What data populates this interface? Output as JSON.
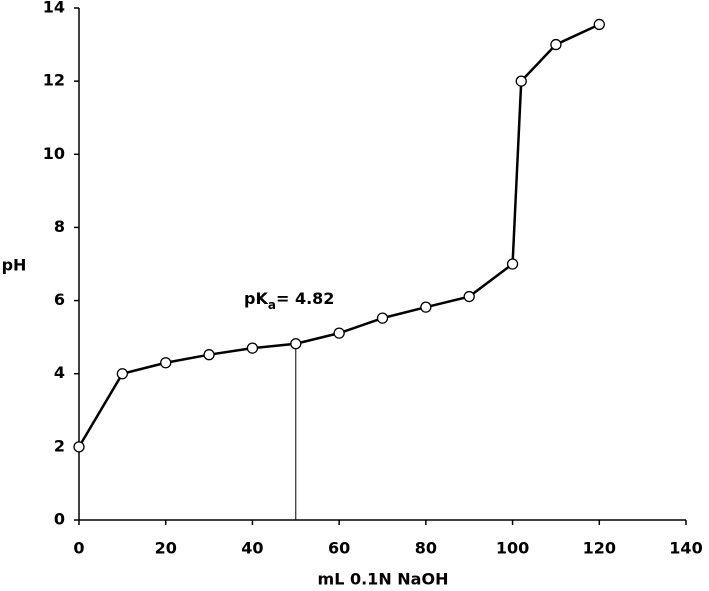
{
  "chart_data": {
    "type": "line",
    "x_label": "mL 0.1N NaOH",
    "y_label": "pH",
    "x": [
      0,
      10,
      20,
      30,
      40,
      50,
      60,
      70,
      80,
      90,
      100,
      102,
      110,
      120
    ],
    "series": [
      {
        "name": "pH",
        "color": "#000000",
        "values": [
          2,
          4,
          4.3,
          4.52,
          4.7,
          4.82,
          5.11,
          5.52,
          5.82,
          6.11,
          7,
          12,
          13,
          13.55
        ]
      }
    ],
    "xlim": [
      0,
      140
    ],
    "xticks": [
      0,
      20,
      40,
      60,
      80,
      100,
      120,
      140
    ],
    "ylim": [
      0,
      14
    ],
    "yticks": [
      0,
      2,
      4,
      6,
      8,
      10,
      12,
      14
    ],
    "grid": false,
    "annotation": {
      "label": "pK",
      "subscript": "a",
      "text": "= 4.82",
      "x": 50,
      "y": 4.82
    }
  }
}
